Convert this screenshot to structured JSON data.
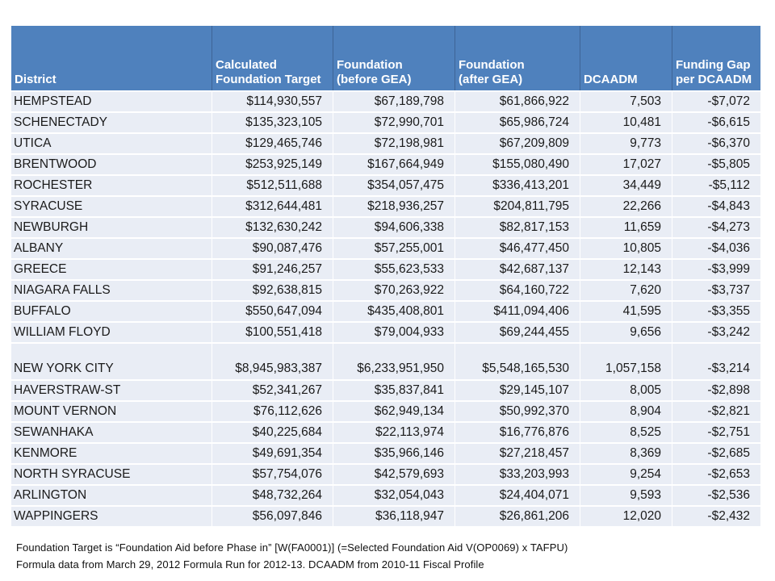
{
  "table": {
    "columns": [
      {
        "key": "district",
        "label": "District",
        "align": "left"
      },
      {
        "key": "calculated-foundation-target",
        "label": "Calculated\nFoundation Target",
        "align": "right"
      },
      {
        "key": "foundation-before-gea",
        "label": "Foundation\n(before GEA)",
        "align": "right"
      },
      {
        "key": "foundation-after-gea",
        "label": "Foundation\n(after GEA)",
        "align": "right"
      },
      {
        "key": "dcaadm",
        "label": "DCAADM",
        "align": "right"
      },
      {
        "key": "funding-gap-per-dcaadm",
        "label": "Funding Gap\nper DCAADM",
        "align": "right"
      }
    ],
    "rows": [
      [
        "HEMPSTEAD",
        "$114,930,557",
        "$67,189,798",
        "$61,866,922",
        "7,503",
        "-$7,072"
      ],
      [
        "SCHENECTADY",
        "$135,323,105",
        "$72,990,701",
        "$65,986,724",
        "10,481",
        "-$6,615"
      ],
      [
        "UTICA",
        "$129,465,746",
        "$72,198,981",
        "$67,209,809",
        "9,773",
        "-$6,370"
      ],
      [
        "BRENTWOOD",
        "$253,925,149",
        "$167,664,949",
        "$155,080,490",
        "17,027",
        "-$5,805"
      ],
      [
        "ROCHESTER",
        "$512,511,688",
        "$354,057,475",
        "$336,413,201",
        "34,449",
        "-$5,112"
      ],
      [
        "SYRACUSE",
        "$312,644,481",
        "$218,936,257",
        "$204,811,795",
        "22,266",
        "-$4,843"
      ],
      [
        "NEWBURGH",
        "$132,630,242",
        "$94,606,338",
        "$82,817,153",
        "11,659",
        "-$4,273"
      ],
      [
        "ALBANY",
        "$90,087,476",
        "$57,255,001",
        "$46,477,450",
        "10,805",
        "-$4,036"
      ],
      [
        "GREECE",
        "$91,246,257",
        "$55,623,533",
        "$42,687,137",
        "12,143",
        "-$3,999"
      ],
      [
        "NIAGARA FALLS",
        "$92,638,815",
        "$70,263,922",
        "$64,160,722",
        "7,620",
        "-$3,737"
      ],
      [
        "BUFFALO",
        "$550,647,094",
        "$435,408,801",
        "$411,094,406",
        "41,595",
        "-$3,355"
      ],
      [
        "WILLIAM FLOYD",
        "$100,551,418",
        "$79,004,933",
        "$69,244,455",
        "9,656",
        "-$3,242"
      ],
      [
        "NEW YORK CITY",
        "$8,945,983,387",
        "$6,233,951,950",
        "$5,548,165,530",
        "1,057,158",
        "-$3,214"
      ],
      [
        "HAVERSTRAW-ST",
        "$52,341,267",
        "$35,837,841",
        "$29,145,107",
        "8,005",
        "-$2,898"
      ],
      [
        "MOUNT VERNON",
        "$76,112,626",
        "$62,949,134",
        "$50,992,370",
        "8,904",
        "-$2,821"
      ],
      [
        "SEWANHAKA",
        "$40,225,684",
        "$22,113,974",
        "$16,776,876",
        "8,525",
        "-$2,751"
      ],
      [
        "KENMORE",
        "$49,691,354",
        "$35,966,146",
        "$27,218,457",
        "8,369",
        "-$2,685"
      ],
      [
        "NORTH SYRACUSE",
        "$57,754,076",
        "$42,579,693",
        "$33,203,993",
        "9,254",
        "-$2,653"
      ],
      [
        "ARLINGTON",
        "$48,732,264",
        "$32,054,043",
        "$24,404,071",
        "9,593",
        "-$2,536"
      ],
      [
        "WAPPINGERS",
        "$56,097,846",
        "$36,118,947",
        "$26,861,206",
        "12,020",
        "-$2,432"
      ]
    ],
    "tall_row_index": 12
  },
  "footnotes": [
    "Foundation Target is “Foundation Aid before Phase in” [W(FA0001)] (=Selected Foundation Aid  V(OP0069) x TAFPU)",
    "Formula data from March 29, 2012 Formula Run for 2012-13. DCAADM from 2010-11 Fiscal Profile"
  ],
  "colors": {
    "header_background": "#4f81bd",
    "header_text": "#ffffff",
    "header_divider": "#3e6496",
    "row_background": "#e9edf5",
    "grid_lines": "#ffffff",
    "body_text": "#1a1a1a"
  }
}
